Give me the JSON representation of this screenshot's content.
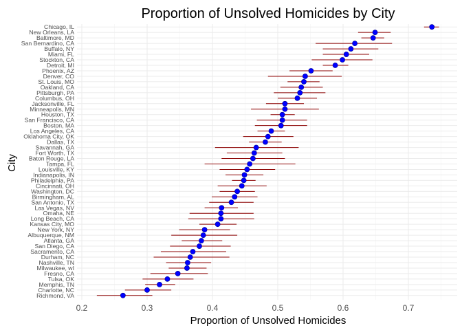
{
  "chart_data": {
    "type": "scatter",
    "title": "Proportion of Unsolved Homicides by City",
    "xlabel": "Proportion of Unsolved Homicides",
    "ylabel": "City",
    "xlim": [
      0.2,
      0.75
    ],
    "x_ticks": [
      0.2,
      0.3,
      0.4,
      0.5,
      0.6,
      0.7
    ],
    "x_tick_labels": [
      "0.2",
      "0.3",
      "0.4",
      "0.5",
      "0.6",
      "0.7"
    ],
    "grid": true,
    "point_color": "#0000ff",
    "errorbar_color": "#8b0000",
    "cities": [
      {
        "name": "Chicago, IL",
        "estimate": 0.736,
        "low": 0.724,
        "high": 0.747
      },
      {
        "name": "New Orleans, LA",
        "estimate": 0.649,
        "low": 0.623,
        "high": 0.673
      },
      {
        "name": "Baltimore, MD",
        "estimate": 0.646,
        "low": 0.628,
        "high": 0.663
      },
      {
        "name": "San Bernardino, CA",
        "estimate": 0.618,
        "low": 0.558,
        "high": 0.675
      },
      {
        "name": "Buffalo, NY",
        "estimate": 0.612,
        "low": 0.569,
        "high": 0.654
      },
      {
        "name": "Miami, FL",
        "estimate": 0.605,
        "low": 0.569,
        "high": 0.64
      },
      {
        "name": "Stockton, CA",
        "estimate": 0.599,
        "low": 0.552,
        "high": 0.645
      },
      {
        "name": "Detroit, MI",
        "estimate": 0.588,
        "low": 0.569,
        "high": 0.608
      },
      {
        "name": "Phoenix, AZ",
        "estimate": 0.551,
        "low": 0.518,
        "high": 0.584
      },
      {
        "name": "Denver, CO",
        "estimate": 0.542,
        "low": 0.485,
        "high": 0.598
      },
      {
        "name": "St. Louis, MO",
        "estimate": 0.54,
        "low": 0.515,
        "high": 0.564
      },
      {
        "name": "Oakland, CA",
        "estimate": 0.536,
        "low": 0.504,
        "high": 0.569
      },
      {
        "name": "Pittsburgh, PA",
        "estimate": 0.534,
        "low": 0.494,
        "high": 0.573
      },
      {
        "name": "Columbus, OH",
        "estimate": 0.53,
        "low": 0.5,
        "high": 0.56
      },
      {
        "name": "Jacksonville, FL",
        "estimate": 0.511,
        "low": 0.482,
        "high": 0.54
      },
      {
        "name": "Minneapolis, MN",
        "estimate": 0.511,
        "low": 0.459,
        "high": 0.563
      },
      {
        "name": "Houston, TX",
        "estimate": 0.507,
        "low": 0.489,
        "high": 0.526
      },
      {
        "name": "San Francisco, CA",
        "estimate": 0.507,
        "low": 0.468,
        "high": 0.545
      },
      {
        "name": "Boston, MA",
        "estimate": 0.505,
        "low": 0.465,
        "high": 0.545
      },
      {
        "name": "Los Angeles, CA",
        "estimate": 0.49,
        "low": 0.469,
        "high": 0.511
      },
      {
        "name": "Oklahoma City, OK",
        "estimate": 0.485,
        "low": 0.447,
        "high": 0.524
      },
      {
        "name": "Dallas, TX",
        "estimate": 0.481,
        "low": 0.456,
        "high": 0.506
      },
      {
        "name": "Savannah, GA",
        "estimate": 0.467,
        "low": 0.404,
        "high": 0.532
      },
      {
        "name": "Fort Worth, TX",
        "estimate": 0.464,
        "low": 0.422,
        "high": 0.507
      },
      {
        "name": "Baton Rouge, LA",
        "estimate": 0.462,
        "low": 0.414,
        "high": 0.511
      },
      {
        "name": "Tampa, FL",
        "estimate": 0.457,
        "low": 0.388,
        "high": 0.527
      },
      {
        "name": "Louisville, KY",
        "estimate": 0.453,
        "low": 0.411,
        "high": 0.496
      },
      {
        "name": "Indianapolis, IN",
        "estimate": 0.449,
        "low": 0.42,
        "high": 0.478
      },
      {
        "name": "Philadelphia, PA",
        "estimate": 0.448,
        "low": 0.43,
        "high": 0.466
      },
      {
        "name": "Cincinnati, OH",
        "estimate": 0.445,
        "low": 0.408,
        "high": 0.483
      },
      {
        "name": "Washington, DC",
        "estimate": 0.438,
        "low": 0.411,
        "high": 0.465
      },
      {
        "name": "Birmingham, AL",
        "estimate": 0.434,
        "low": 0.399,
        "high": 0.469
      },
      {
        "name": "San Antonio, TX",
        "estimate": 0.429,
        "low": 0.395,
        "high": 0.463
      },
      {
        "name": "Las Vegas, NV",
        "estimate": 0.414,
        "low": 0.388,
        "high": 0.439
      },
      {
        "name": "Omaha, NE",
        "estimate": 0.413,
        "low": 0.365,
        "high": 0.463
      },
      {
        "name": "Long Beach, CA",
        "estimate": 0.413,
        "low": 0.363,
        "high": 0.464
      },
      {
        "name": "Kansas City, MO",
        "estimate": 0.408,
        "low": 0.38,
        "high": 0.437
      },
      {
        "name": "New York, NY",
        "estimate": 0.388,
        "low": 0.349,
        "high": 0.427
      },
      {
        "name": "Albuquerque, NM",
        "estimate": 0.386,
        "low": 0.337,
        "high": 0.438
      },
      {
        "name": "Atlanta, GA",
        "estimate": 0.383,
        "low": 0.353,
        "high": 0.415
      },
      {
        "name": "San Diego, CA",
        "estimate": 0.38,
        "low": 0.335,
        "high": 0.428
      },
      {
        "name": "Sacramento, CA",
        "estimate": 0.37,
        "low": 0.321,
        "high": 0.421
      },
      {
        "name": "Durham, NC",
        "estimate": 0.366,
        "low": 0.31,
        "high": 0.426
      },
      {
        "name": "Nashville, TN",
        "estimate": 0.362,
        "low": 0.329,
        "high": 0.398
      },
      {
        "name": "Milwaukee, wI",
        "estimate": 0.361,
        "low": 0.333,
        "high": 0.391
      },
      {
        "name": "Fresno, CA",
        "estimate": 0.347,
        "low": 0.305,
        "high": 0.393
      },
      {
        "name": "Tulsa, OK",
        "estimate": 0.331,
        "low": 0.293,
        "high": 0.371
      },
      {
        "name": "Memphis, TN",
        "estimate": 0.319,
        "low": 0.297,
        "high": 0.343
      },
      {
        "name": "Charlotte, NC",
        "estimate": 0.3,
        "low": 0.266,
        "high": 0.337
      },
      {
        "name": "Richmond, VA",
        "estimate": 0.263,
        "low": 0.223,
        "high": 0.308
      }
    ]
  }
}
